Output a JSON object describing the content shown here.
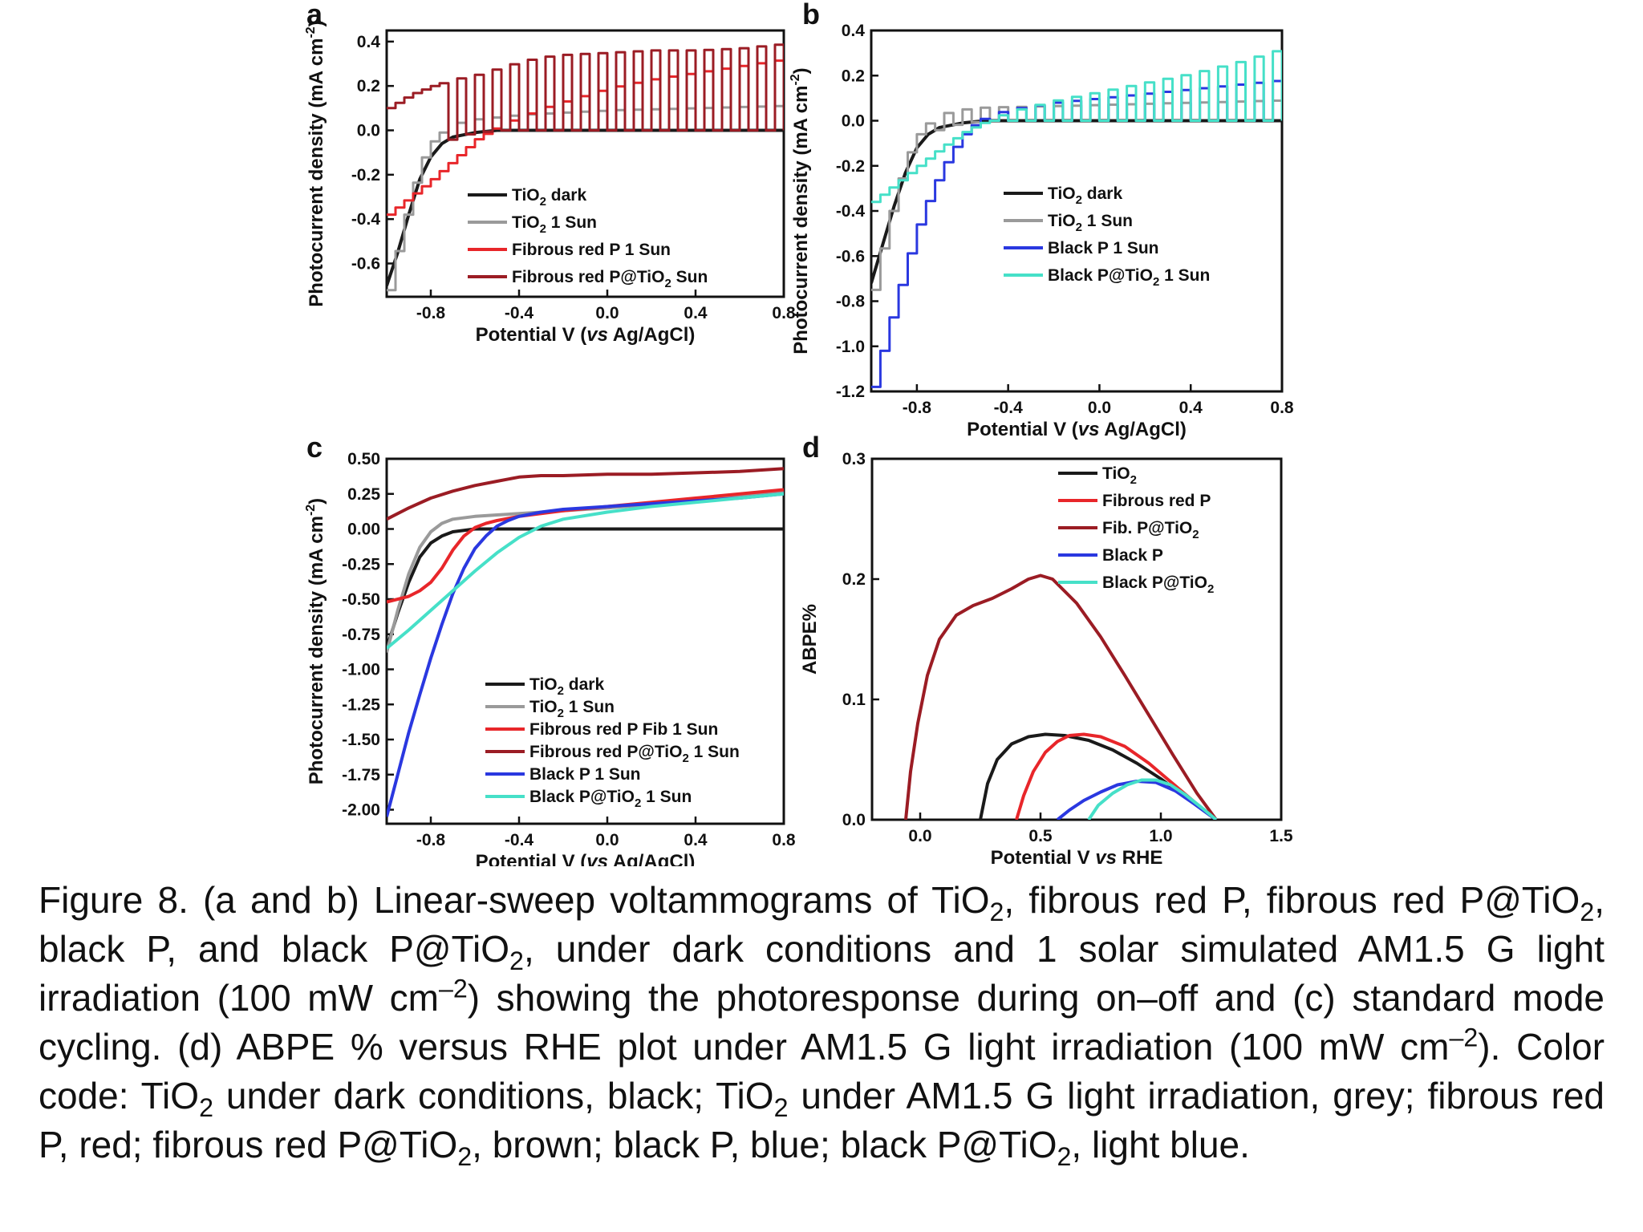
{
  "colors": {
    "tio2_dark": "#1a1a1a",
    "tio2_sun": "#9a9a9a",
    "fibrous_red_p": "#e8262a",
    "fibrous_red_p_tio2": "#9b1c24",
    "black_p": "#2a38e0",
    "black_p_tio2": "#46e0c8"
  },
  "caption": {
    "l1a": "Figure 8. (a and b) Linear-sweep voltammograms of TiO",
    "l1b": "2",
    "l1c": ", fibrous red P, fibrous",
    "l2a": "red P@TiO",
    "l2b": "2",
    "l2c": ", black P, and black P@TiO",
    "l2d": "2",
    "l2e": ", under dark conditions and 1 solar simulated",
    "l3a": "AM1.5 G light irradiation (100 mW cm",
    "l3b": "–2",
    "l3c": ") showing the photoresponse during on–off",
    "l4a": "and (c) standard mode cycling. (d) ABPE % versus RHE plot under AM1.5 G light",
    "l5a": "irradiation (100 mW cm",
    "l5b": "–2",
    "l5c": "). Color code: TiO",
    "l5d": "2",
    "l5e": " under dark conditions, black; TiO",
    "l5f": "2",
    "l5g": " under",
    "l6a": "AM1.5 G light irradiation, grey; fibrous red P, red; fibrous red P@TiO",
    "l6b": "2",
    "l6c": ", brown; black P,",
    "l7a": "blue; black P@TiO",
    "l7b": "2",
    "l7c": ", light blue."
  },
  "chart_data": [
    {
      "panel": "a",
      "type": "line",
      "xlabel": "Potential V (vs Ag/AgCl)",
      "ylabel": "Photocurrent density (mA cm-2)",
      "xlim": [
        -1.0,
        0.8
      ],
      "ylim": [
        -0.75,
        0.45
      ],
      "xticks": [
        -0.8,
        -0.4,
        0.0,
        0.4,
        0.8
      ],
      "xtick_labels": [
        "-0.8",
        "-0.4",
        "0.0",
        "0.4",
        "0.8"
      ],
      "yticks": [
        -0.6,
        -0.4,
        -0.2,
        0.0,
        0.2,
        0.4
      ],
      "ytick_labels": [
        "-0.6",
        "-0.4",
        "-0.2",
        "0.0",
        "0.2",
        "0.4"
      ],
      "legend_position": "bottom-right",
      "series": [
        {
          "name": "TiO2 dark",
          "legend": [
            "TiO",
            "2",
            " dark"
          ],
          "color_key": "tio2_dark",
          "x": [
            -1.0,
            -0.95,
            -0.9,
            -0.85,
            -0.8,
            -0.75,
            -0.7,
            -0.6,
            -0.5,
            -0.4,
            -0.2,
            0.0,
            0.4,
            0.8
          ],
          "y": [
            -0.7,
            -0.55,
            -0.38,
            -0.22,
            -0.12,
            -0.06,
            -0.03,
            -0.01,
            0.0,
            0.0,
            0.0,
            0.0,
            0.0,
            0.0
          ]
        },
        {
          "name": "TiO2 1 Sun",
          "legend": [
            "TiO",
            "2",
            " 1 Sun"
          ],
          "color_key": "tio2_sun",
          "x": [
            -1.0,
            -0.95,
            -0.9,
            -0.85,
            -0.8,
            -0.75,
            -0.7,
            -0.6,
            -0.5,
            -0.4,
            -0.2,
            0.0,
            0.4,
            0.8
          ],
          "y": [
            -0.72,
            -0.5,
            -0.3,
            -0.14,
            -0.05,
            0.0,
            0.03,
            0.05,
            0.06,
            0.07,
            0.08,
            0.09,
            0.1,
            0.11
          ],
          "chopped": true
        },
        {
          "name": "Fibrous red P 1 Sun",
          "legend": [
            "Fibrous red P 1 Sun"
          ],
          "color_key": "fibrous_red_p",
          "x": [
            -1.0,
            -0.9,
            -0.8,
            -0.7,
            -0.6,
            -0.5,
            -0.4,
            -0.3,
            -0.2,
            -0.1,
            0.0,
            0.2,
            0.4,
            0.6,
            0.8
          ],
          "y": [
            -0.38,
            -0.3,
            -0.22,
            -0.13,
            -0.04,
            0.02,
            0.06,
            0.1,
            0.13,
            0.16,
            0.19,
            0.23,
            0.26,
            0.29,
            0.32
          ],
          "chopped": true
        },
        {
          "name": "Fibrous red P@TiO2 Sun",
          "legend": [
            "Fibrous red P@TiO",
            "2",
            " Sun"
          ],
          "color_key": "fibrous_red_p_tio2",
          "x": [
            -1.0,
            -0.9,
            -0.8,
            -0.7,
            -0.6,
            -0.5,
            -0.4,
            -0.3,
            -0.2,
            0.0,
            0.2,
            0.4,
            0.6,
            0.8
          ],
          "y": [
            0.1,
            0.16,
            0.2,
            0.23,
            0.25,
            0.28,
            0.31,
            0.33,
            0.34,
            0.35,
            0.36,
            0.36,
            0.37,
            0.39
          ],
          "chopped": true
        }
      ]
    },
    {
      "panel": "b",
      "type": "line",
      "xlabel": "Potential V (vs Ag/AgCl)",
      "ylabel": "Photocurrent density (mA cm-2)",
      "xlim": [
        -1.0,
        0.8
      ],
      "ylim": [
        -1.2,
        0.4
      ],
      "xticks": [
        -0.8,
        -0.4,
        0.0,
        0.4,
        0.8
      ],
      "xtick_labels": [
        "-0.8",
        "-0.4",
        "0.0",
        "0.4",
        "0.8"
      ],
      "yticks": [
        -1.2,
        -1.0,
        -0.8,
        -0.6,
        -0.4,
        -0.2,
        0.0,
        0.2,
        0.4
      ],
      "ytick_labels": [
        "-1.2",
        "-1.0",
        "-0.8",
        "-0.6",
        "-0.4",
        "-0.2",
        "0.0",
        "0.2",
        "0.4"
      ],
      "legend_position": "bottom-right",
      "series": [
        {
          "name": "TiO2 dark",
          "legend": [
            "TiO",
            "2",
            " dark"
          ],
          "color_key": "tio2_dark",
          "x": [
            -1.0,
            -0.95,
            -0.9,
            -0.85,
            -0.8,
            -0.75,
            -0.7,
            -0.6,
            -0.5,
            -0.4,
            0.0,
            0.4,
            0.8
          ],
          "y": [
            -0.72,
            -0.55,
            -0.38,
            -0.23,
            -0.12,
            -0.06,
            -0.03,
            -0.01,
            0.0,
            0.0,
            0.0,
            0.0,
            0.0
          ]
        },
        {
          "name": "TiO2 1 Sun",
          "legend": [
            "TiO",
            "2",
            " 1 Sun"
          ],
          "color_key": "tio2_sun",
          "x": [
            -1.0,
            -0.95,
            -0.9,
            -0.85,
            -0.8,
            -0.75,
            -0.7,
            -0.6,
            -0.5,
            -0.4,
            0.0,
            0.4,
            0.8
          ],
          "y": [
            -0.75,
            -0.52,
            -0.32,
            -0.16,
            -0.06,
            0.0,
            0.03,
            0.05,
            0.06,
            0.06,
            0.07,
            0.08,
            0.09
          ],
          "chopped": true
        },
        {
          "name": "Black P 1 Sun",
          "legend": [
            "Black P 1 Sun"
          ],
          "color_key": "black_p",
          "x": [
            -1.0,
            -0.95,
            -0.9,
            -0.85,
            -0.8,
            -0.75,
            -0.7,
            -0.65,
            -0.6,
            -0.55,
            -0.5,
            -0.4,
            -0.2,
            0.0,
            0.2,
            0.4,
            0.6,
            0.8
          ],
          "y": [
            -1.18,
            -0.98,
            -0.8,
            -0.62,
            -0.46,
            -0.33,
            -0.22,
            -0.13,
            -0.06,
            -0.01,
            0.02,
            0.05,
            0.08,
            0.1,
            0.12,
            0.14,
            0.16,
            0.18
          ],
          "chopped": true
        },
        {
          "name": "Black P@TiO2 1 Sun",
          "legend": [
            "Black P@TiO",
            "2",
            " 1 Sun"
          ],
          "color_key": "black_p_tio2",
          "x": [
            -1.0,
            -0.9,
            -0.8,
            -0.7,
            -0.6,
            -0.5,
            -0.4,
            -0.2,
            0.0,
            0.2,
            0.4,
            0.6,
            0.8
          ],
          "y": [
            -0.36,
            -0.28,
            -0.2,
            -0.12,
            -0.05,
            0.0,
            0.04,
            0.09,
            0.13,
            0.17,
            0.21,
            0.26,
            0.32
          ],
          "chopped": true
        }
      ]
    },
    {
      "panel": "c",
      "type": "line",
      "xlabel": "Potential V (vs Ag/AgCl)",
      "ylabel": "Photocurrent density (mA cm-2)",
      "xlim": [
        -1.0,
        0.8
      ],
      "ylim": [
        -2.1,
        0.5
      ],
      "xticks": [
        -0.8,
        -0.4,
        0.0,
        0.4,
        0.8
      ],
      "xtick_labels": [
        "-0.8",
        "-0.4",
        "0.0",
        "0.4",
        "0.8"
      ],
      "yticks": [
        0.5,
        0.25,
        0.0,
        -0.25,
        -0.5,
        -0.75,
        -1.0,
        -1.25,
        -1.5,
        -1.75,
        -2.0
      ],
      "ytick_labels": [
        "0.50",
        "0.25",
        "0.00",
        "-0.25",
        "-0.50",
        "-0.75",
        "-1.00",
        "-1.25",
        "-1.50",
        "-1.75",
        "-2.00"
      ],
      "legend_position": "bottom-right",
      "series": [
        {
          "name": "TiO2 dark",
          "legend": [
            "TiO",
            "2",
            " dark"
          ],
          "color_key": "tio2_dark",
          "x": [
            -1.0,
            -0.95,
            -0.9,
            -0.85,
            -0.8,
            -0.75,
            -0.7,
            -0.6,
            -0.5,
            -0.4,
            -0.2,
            0.0,
            0.4,
            0.8
          ],
          "y": [
            -0.85,
            -0.6,
            -0.38,
            -0.2,
            -0.1,
            -0.05,
            -0.02,
            0.0,
            0.0,
            0.0,
            0.0,
            0.0,
            0.0,
            0.0
          ]
        },
        {
          "name": "TiO2 1 Sun",
          "legend": [
            "TiO",
            "2",
            " 1 Sun"
          ],
          "color_key": "tio2_sun",
          "x": [
            -1.0,
            -0.95,
            -0.9,
            -0.85,
            -0.8,
            -0.75,
            -0.7,
            -0.6,
            -0.5,
            -0.4,
            -0.2,
            0.0,
            0.4,
            0.8
          ],
          "y": [
            -0.88,
            -0.58,
            -0.32,
            -0.13,
            -0.02,
            0.04,
            0.07,
            0.09,
            0.1,
            0.11,
            0.13,
            0.15,
            0.2,
            0.26
          ]
        },
        {
          "name": "Fibrous red P Fib 1 Sun",
          "legend": [
            "Fibrous red P Fib 1 Sun"
          ],
          "color_key": "fibrous_red_p",
          "x": [
            -1.0,
            -0.9,
            -0.85,
            -0.8,
            -0.75,
            -0.7,
            -0.65,
            -0.6,
            -0.55,
            -0.5,
            -0.4,
            -0.3,
            -0.2,
            0.0,
            0.2,
            0.4,
            0.6,
            0.8
          ],
          "y": [
            -0.52,
            -0.48,
            -0.44,
            -0.38,
            -0.28,
            -0.15,
            -0.05,
            0.01,
            0.04,
            0.06,
            0.09,
            0.11,
            0.13,
            0.16,
            0.19,
            0.22,
            0.25,
            0.28
          ]
        },
        {
          "name": "Fibrous red P@TiO2 1 Sun",
          "legend": [
            "Fibrous red P@TiO",
            "2",
            " 1 Sun"
          ],
          "color_key": "fibrous_red_p_tio2",
          "x": [
            -1.0,
            -0.9,
            -0.8,
            -0.7,
            -0.6,
            -0.5,
            -0.4,
            -0.3,
            -0.2,
            0.0,
            0.2,
            0.4,
            0.6,
            0.8
          ],
          "y": [
            0.07,
            0.15,
            0.22,
            0.27,
            0.31,
            0.34,
            0.37,
            0.38,
            0.38,
            0.39,
            0.39,
            0.4,
            0.41,
            0.43
          ]
        },
        {
          "name": "Black P 1 Sun",
          "legend": [
            "Black P 1 Sun"
          ],
          "color_key": "black_p",
          "x": [
            -1.0,
            -0.95,
            -0.9,
            -0.85,
            -0.8,
            -0.75,
            -0.7,
            -0.65,
            -0.6,
            -0.55,
            -0.5,
            -0.45,
            -0.4,
            -0.3,
            -0.2,
            0.0,
            0.2,
            0.4,
            0.6,
            0.8
          ],
          "y": [
            -2.05,
            -1.75,
            -1.45,
            -1.18,
            -0.92,
            -0.68,
            -0.46,
            -0.28,
            -0.14,
            -0.05,
            0.02,
            0.06,
            0.09,
            0.12,
            0.14,
            0.16,
            0.18,
            0.2,
            0.22,
            0.25
          ]
        },
        {
          "name": "Black P@TiO2 1 Sun",
          "legend": [
            "Black P@TiO",
            "2",
            " 1 Sun"
          ],
          "color_key": "black_p_tio2",
          "x": [
            -1.0,
            -0.9,
            -0.8,
            -0.7,
            -0.6,
            -0.5,
            -0.4,
            -0.3,
            -0.2,
            0.0,
            0.2,
            0.4,
            0.6,
            0.8
          ],
          "y": [
            -0.85,
            -0.72,
            -0.58,
            -0.44,
            -0.3,
            -0.17,
            -0.06,
            0.02,
            0.07,
            0.12,
            0.16,
            0.19,
            0.22,
            0.25
          ]
        }
      ]
    },
    {
      "panel": "d",
      "type": "line",
      "xlabel": "Potential V vs RHE",
      "ylabel": "ABPE%",
      "xlim": [
        -0.2,
        1.5
      ],
      "ylim": [
        0.0,
        0.3
      ],
      "xticks": [
        0.0,
        0.5,
        1.0,
        1.5
      ],
      "xtick_labels": [
        "0.0",
        "0.5",
        "1.0",
        "1.5"
      ],
      "yticks": [
        0.0,
        0.1,
        0.2,
        0.3
      ],
      "ytick_labels": [
        "0.0",
        "0.1",
        "0.2",
        "0.3"
      ],
      "legend_position": "top-right",
      "series": [
        {
          "name": "TiO2",
          "legend": [
            "TiO",
            "2",
            ""
          ],
          "color_key": "tio2_dark",
          "x": [
            0.25,
            0.28,
            0.32,
            0.38,
            0.45,
            0.52,
            0.6,
            0.7,
            0.8,
            0.9,
            1.0,
            1.1,
            1.23
          ],
          "y": [
            0.0,
            0.03,
            0.05,
            0.063,
            0.069,
            0.071,
            0.07,
            0.066,
            0.058,
            0.047,
            0.034,
            0.019,
            0.0
          ]
        },
        {
          "name": "Fibrous red P",
          "legend": [
            "Fibrous red P"
          ],
          "color_key": "fibrous_red_p",
          "x": [
            0.4,
            0.43,
            0.47,
            0.52,
            0.57,
            0.62,
            0.68,
            0.75,
            0.85,
            0.95,
            1.05,
            1.15,
            1.23
          ],
          "y": [
            0.0,
            0.02,
            0.04,
            0.056,
            0.065,
            0.07,
            0.071,
            0.069,
            0.061,
            0.047,
            0.03,
            0.013,
            0.0
          ]
        },
        {
          "name": "Fib. P@TiO2",
          "legend": [
            "Fib. P@TiO",
            "2",
            ""
          ],
          "color_key": "fibrous_red_p_tio2",
          "x": [
            -0.06,
            -0.04,
            -0.01,
            0.03,
            0.08,
            0.15,
            0.22,
            0.3,
            0.38,
            0.45,
            0.5,
            0.55,
            0.65,
            0.75,
            0.85,
            0.95,
            1.05,
            1.15,
            1.23
          ],
          "y": [
            0.0,
            0.04,
            0.08,
            0.12,
            0.15,
            0.17,
            0.178,
            0.184,
            0.192,
            0.2,
            0.203,
            0.2,
            0.18,
            0.152,
            0.12,
            0.087,
            0.054,
            0.022,
            0.0
          ]
        },
        {
          "name": "Black P",
          "legend": [
            "Black P"
          ],
          "color_key": "black_p",
          "x": [
            0.57,
            0.62,
            0.68,
            0.75,
            0.82,
            0.9,
            0.98,
            1.06,
            1.14,
            1.23
          ],
          "y": [
            0.0,
            0.008,
            0.016,
            0.023,
            0.029,
            0.032,
            0.031,
            0.024,
            0.013,
            0.0
          ]
        },
        {
          "name": "Black P@TiO2",
          "legend": [
            "Black P@TiO",
            "2",
            ""
          ],
          "color_key": "black_p_tio2",
          "x": [
            0.7,
            0.74,
            0.8,
            0.86,
            0.92,
            0.98,
            1.04,
            1.1,
            1.17,
            1.23
          ],
          "y": [
            0.0,
            0.012,
            0.022,
            0.029,
            0.033,
            0.033,
            0.029,
            0.021,
            0.01,
            0.0
          ]
        }
      ]
    }
  ]
}
